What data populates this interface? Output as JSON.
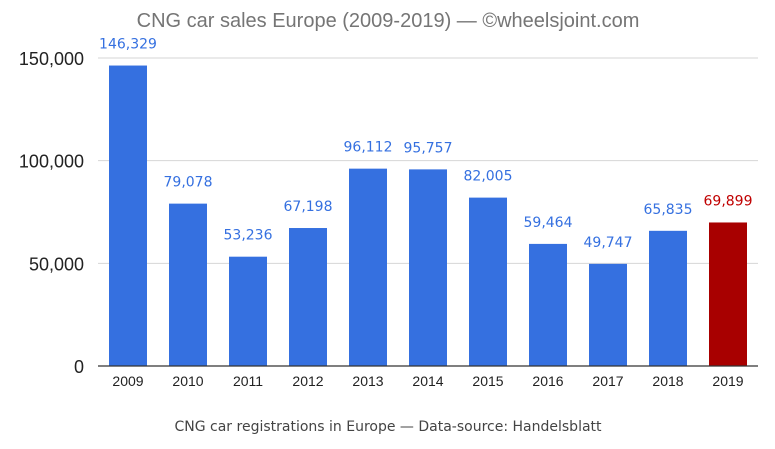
{
  "chart_data": {
    "type": "bar",
    "title": "CNG car sales Europe (2009-2019)  — ©wheelsjoint.com",
    "xlabel": "CNG car registrations in Europe — Data-source: Handelsblatt",
    "ylabel": "",
    "categories": [
      "2009",
      "2010",
      "2011",
      "2012",
      "2013",
      "2014",
      "2015",
      "2016",
      "2017",
      "2018",
      "2019"
    ],
    "values": [
      146329,
      79078,
      53236,
      67198,
      96112,
      95757,
      82005,
      59464,
      49747,
      65835,
      69899
    ],
    "data_labels": [
      "146,329",
      "79,078",
      "53,236",
      "67,198",
      "96,112",
      "95,757",
      "82,005",
      "59,464",
      "49,747",
      "65,835",
      "69,899"
    ],
    "ylim": [
      0,
      150000
    ],
    "yticks": [
      0,
      50000,
      100000,
      150000
    ],
    "ytick_labels": [
      "0",
      "50,000",
      "100,000",
      "150,000"
    ],
    "grid": true,
    "legend": "none",
    "colors": {
      "bar": "#3570E0",
      "highlight_bar": "#A80000",
      "label": "#3570E0",
      "highlight_label": "#C00000",
      "grid": "#D6D6D6",
      "axis": "#333333"
    },
    "highlight_index": 10
  }
}
